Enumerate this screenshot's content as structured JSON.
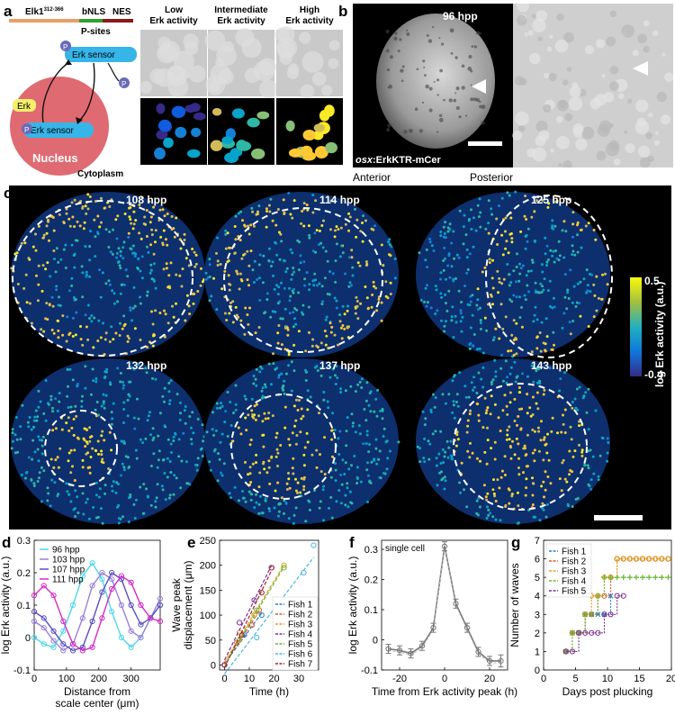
{
  "panels": {
    "a": {
      "letter": "a",
      "construct": {
        "elk": "Elk1",
        "elk_sup": "312-366",
        "bnls": "bNLS",
        "nes": "NES",
        "psites": "P-sites"
      },
      "sensor_top": "Erk sensor",
      "sensor_bottom": "Erk sensor",
      "erk": "Erk",
      "p": "P",
      "nucleus": "Nucleus",
      "cytoplasm": "Cytoplasm",
      "col_low": [
        "Low",
        "Erk activity"
      ],
      "col_mid": [
        "Intermediate",
        "Erk activity"
      ],
      "col_high": [
        "High",
        "Erk activity"
      ]
    },
    "b": {
      "letter": "b",
      "time": "96 hpp",
      "label_italic": "osx",
      "label_rest": ":ErkKTR-mCer",
      "anterior": "Anterior",
      "posterior": "Posterior"
    },
    "c": {
      "letter": "c",
      "times": [
        "108 hpp",
        "114 hpp",
        "125 hpp",
        "132 hpp",
        "137 hpp",
        "143 hpp"
      ],
      "colorbar": {
        "label": "log Erk activity (a.u.)",
        "max": "0.5",
        "min": "-0.4"
      }
    }
  },
  "chart_data": [
    {
      "panel": "d",
      "type": "line",
      "xlabel": "Distance from scale center (μm)",
      "ylabel": "log Erk activity (a.u.)",
      "xlim": [
        0,
        390
      ],
      "ylim": [
        -0.1,
        0.3
      ],
      "xticks": [
        "0",
        "100",
        "200",
        "300"
      ],
      "yticks": [
        "-0.1",
        "0",
        "0.1",
        "0.2",
        "0.3"
      ],
      "legend_position": "top-left",
      "series": [
        {
          "name": "96 hpp",
          "color": "#4fd8e8",
          "x": [
            0,
            30,
            60,
            90,
            120,
            150,
            180,
            210,
            240,
            270,
            300,
            330,
            360,
            390
          ],
          "y": [
            0.0,
            -0.02,
            -0.03,
            0.02,
            0.1,
            0.19,
            0.23,
            0.18,
            0.08,
            0.0,
            -0.03,
            0.0,
            0.06,
            0.1
          ]
        },
        {
          "name": "103 hpp",
          "color": "#9a80d8",
          "x": [
            0,
            30,
            60,
            90,
            120,
            150,
            180,
            210,
            240,
            270,
            300,
            330,
            360,
            390
          ],
          "y": [
            0.05,
            0.03,
            -0.01,
            -0.04,
            -0.02,
            0.06,
            0.16,
            0.2,
            0.18,
            0.1,
            0.02,
            0.0,
            0.06,
            0.12
          ]
        },
        {
          "name": "107 hpp",
          "color": "#5a4fc0",
          "x": [
            0,
            30,
            60,
            90,
            120,
            150,
            180,
            210,
            240,
            270,
            300,
            330,
            360,
            390
          ],
          "y": [
            0.08,
            0.06,
            0.02,
            -0.02,
            -0.04,
            -0.03,
            0.05,
            0.14,
            0.2,
            0.18,
            0.1,
            0.04,
            0.06,
            0.1
          ]
        },
        {
          "name": "111 hpp",
          "color": "#d22cc4",
          "x": [
            0,
            30,
            60,
            90,
            120,
            150,
            180,
            210,
            240,
            270,
            300,
            330,
            360,
            390
          ],
          "y": [
            0.13,
            0.16,
            0.13,
            0.05,
            -0.02,
            -0.04,
            -0.03,
            0.06,
            0.15,
            0.19,
            0.17,
            0.1,
            0.06,
            0.05
          ]
        }
      ]
    },
    {
      "panel": "e",
      "type": "scatter",
      "xlabel": "Time (h)",
      "ylabel": "Wave peak displacement (μm)",
      "xlim": [
        -2,
        38
      ],
      "ylim": [
        -10,
        250
      ],
      "xticks": [
        "0",
        "10",
        "20",
        "30"
      ],
      "yticks": [
        "0",
        "50",
        "100",
        "150",
        "200",
        "250"
      ],
      "legend_position": "bottom-right",
      "series": [
        {
          "name": "Fish 1",
          "color": "#2f7fc1",
          "x": [
            0,
            8,
            11,
            15
          ],
          "y": [
            0,
            60,
            80,
            100
          ]
        },
        {
          "name": "Fish 2",
          "color": "#e05a2a",
          "x": [
            0,
            5,
            11,
            14
          ],
          "y": [
            0,
            45,
            80,
            110
          ]
        },
        {
          "name": "Fish 3",
          "color": "#e0a020",
          "x": [
            0,
            6,
            12,
            24
          ],
          "y": [
            0,
            65,
            100,
            200
          ]
        },
        {
          "name": "Fish 4",
          "color": "#7b2f8e",
          "x": [
            0,
            6,
            12,
            19
          ],
          "y": [
            0,
            85,
            130,
            195
          ]
        },
        {
          "name": "Fish 5",
          "color": "#69b531",
          "x": [
            0,
            6,
            13,
            24
          ],
          "y": [
            0,
            50,
            110,
            195
          ]
        },
        {
          "name": "Fish 6",
          "color": "#4ab8e0",
          "x": [
            0,
            13,
            22,
            32,
            36
          ],
          "y": [
            0,
            55,
            100,
            185,
            240
          ]
        },
        {
          "name": "Fish 7",
          "color": "#a02030",
          "x": [
            0,
            7,
            15,
            19
          ],
          "y": [
            0,
            60,
            145,
            195
          ]
        }
      ]
    },
    {
      "panel": "f",
      "type": "line",
      "annotation": "single cell",
      "xlabel": "Time from Erk activity peak (h)",
      "ylabel": "log Erk activity (a.u.)",
      "xlim": [
        -28,
        28
      ],
      "ylim": [
        -0.1,
        0.33
      ],
      "xticks": [
        "-20",
        "0",
        "20"
      ],
      "yticks": [
        "-0.1",
        "0",
        "0.1",
        "0.2",
        "0.3"
      ],
      "series": [
        {
          "name": "",
          "color": "#777777",
          "x": [
            -25,
            -20,
            -15,
            -10,
            -5,
            0,
            5,
            10,
            15,
            20,
            25
          ],
          "y": [
            -0.03,
            -0.035,
            -0.045,
            -0.02,
            0.04,
            0.31,
            0.12,
            0.04,
            -0.04,
            -0.07,
            -0.07
          ],
          "err": [
            0.015,
            0.015,
            0.015,
            0.015,
            0.015,
            0.015,
            0.015,
            0.015,
            0.015,
            0.015,
            0.02
          ]
        }
      ]
    },
    {
      "panel": "g",
      "type": "line",
      "xlabel": "Days post plucking",
      "ylabel": "Number of waves",
      "xlim": [
        0,
        20
      ],
      "ylim": [
        0,
        7
      ],
      "xticks": [
        "0",
        "5",
        "10",
        "15",
        "20"
      ],
      "yticks": [
        "0",
        "1",
        "2",
        "3",
        "4",
        "5",
        "6",
        "7"
      ],
      "legend_position": "top-left",
      "series": [
        {
          "name": "Fish 1",
          "color": "#2f7fc1",
          "marker": "x",
          "x": [
            3.5,
            4.5,
            5.5,
            6.5,
            7.5,
            8.5,
            9.5,
            10.5
          ],
          "y": [
            1,
            2,
            2,
            3,
            3,
            3,
            3,
            4
          ]
        },
        {
          "name": "Fish 2",
          "color": "#e05a2a",
          "marker": "o",
          "x": [
            3.5,
            4.5,
            5.5,
            6.5,
            7.5,
            8.5,
            9.5,
            10.5,
            11.5,
            12.5,
            13.5,
            14.5,
            15.5,
            16.5,
            17.5,
            18.5,
            19.5
          ],
          "y": [
            1,
            2,
            2,
            3,
            3,
            4,
            4,
            5,
            6,
            6,
            6,
            6,
            6,
            6,
            6,
            6,
            6
          ]
        },
        {
          "name": "Fish 3",
          "color": "#e0a020",
          "marker": "d",
          "x": [
            3.5,
            4.5,
            5.5,
            6.5,
            7.5,
            8.5,
            9.5,
            10.5,
            11.5,
            12.5,
            13.5,
            14.5,
            15.5,
            16.5,
            17.5,
            18.5,
            19.5
          ],
          "y": [
            1,
            2,
            2,
            3,
            4,
            4,
            5,
            5,
            6,
            6,
            6,
            6,
            6,
            6,
            6,
            6,
            6
          ]
        },
        {
          "name": "Fish 4",
          "color": "#69b531",
          "marker": "+",
          "x": [
            3.5,
            4.5,
            5.5,
            6.5,
            7.5,
            8.5,
            9.5,
            10.5,
            11.5,
            12.5,
            13.5,
            14.5,
            15.5,
            16.5,
            17.5,
            18.5,
            19.5
          ],
          "y": [
            1,
            2,
            2,
            3,
            3,
            4,
            5,
            5,
            5,
            5,
            5,
            5,
            5,
            5,
            5,
            5,
            5
          ]
        },
        {
          "name": "Fish 5",
          "color": "#7b2f8e",
          "marker": "o",
          "x": [
            3.5,
            4.5,
            5.5,
            6.5,
            7.5,
            8.5,
            9.5,
            10.5,
            11.5,
            12.5
          ],
          "y": [
            1,
            1,
            2,
            2,
            2,
            2,
            3,
            3,
            4,
            4
          ]
        }
      ]
    }
  ]
}
